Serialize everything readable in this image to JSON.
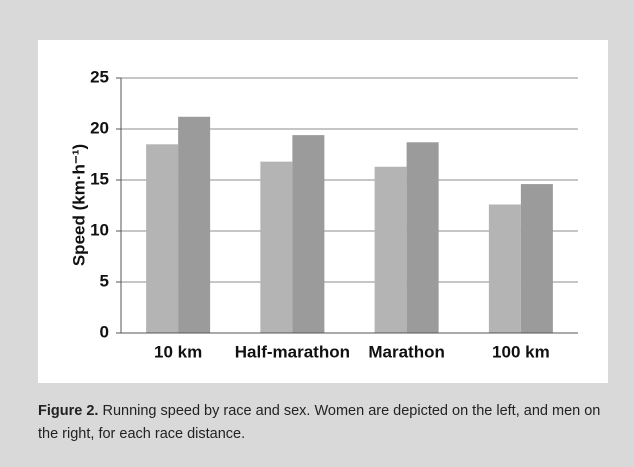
{
  "chart_data": {
    "type": "bar",
    "categories": [
      "10 km",
      "Half-marathon",
      "Marathon",
      "100 km"
    ],
    "series": [
      {
        "color": "#b4b4b4",
        "values": [
          18.5,
          16.8,
          16.3,
          12.6
        ]
      },
      {
        "color": "#9b9b9b",
        "values": [
          21.2,
          19.4,
          18.7,
          14.6
        ]
      }
    ],
    "y_label": "Speed (km·h⁻¹)",
    "ylim": [
      0,
      25
    ],
    "yticks": [
      0,
      5,
      10,
      15,
      20,
      25
    ],
    "grid": true
  },
  "caption": {
    "label": "Figure 2.",
    "text": "Running speed by race and sex. Women are depicted on the left, and men on the right, for each race distance."
  }
}
